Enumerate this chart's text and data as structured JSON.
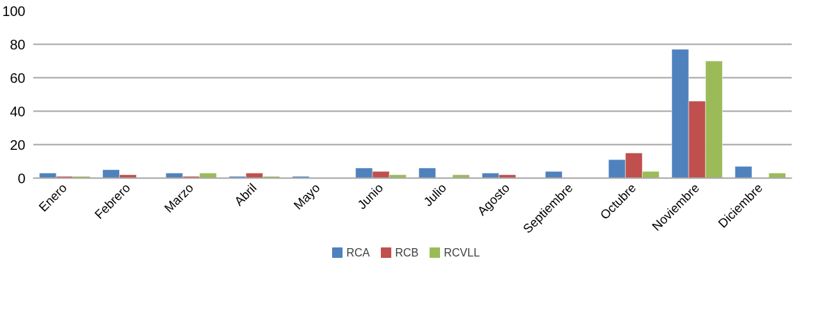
{
  "chart_data": {
    "type": "bar",
    "categories": [
      "Enero",
      "Febrero",
      "Marzo",
      "Abril",
      "Mayo",
      "Junio",
      "Julio",
      "Agosto",
      "Septiembre",
      "Octubre",
      "Noviembre",
      "Diciembre"
    ],
    "series": [
      {
        "name": "RCA",
        "color": "#4f81bd",
        "values": [
          3,
          5,
          3,
          1,
          1,
          6,
          6,
          3,
          4,
          11,
          77,
          7
        ]
      },
      {
        "name": "RCB",
        "color": "#c0504d",
        "values": [
          1,
          2,
          1,
          3,
          null,
          4,
          null,
          2,
          null,
          15,
          46,
          null
        ]
      },
      {
        "name": "RCVLL",
        "color": "#9bbb59",
        "values": [
          1,
          null,
          3,
          1,
          null,
          2,
          2,
          null,
          null,
          4,
          70,
          3
        ]
      }
    ],
    "ylim": [
      0,
      100
    ],
    "yticks": [
      0,
      20,
      40,
      60,
      80,
      100
    ],
    "grid": "y",
    "legend": "bottom"
  }
}
